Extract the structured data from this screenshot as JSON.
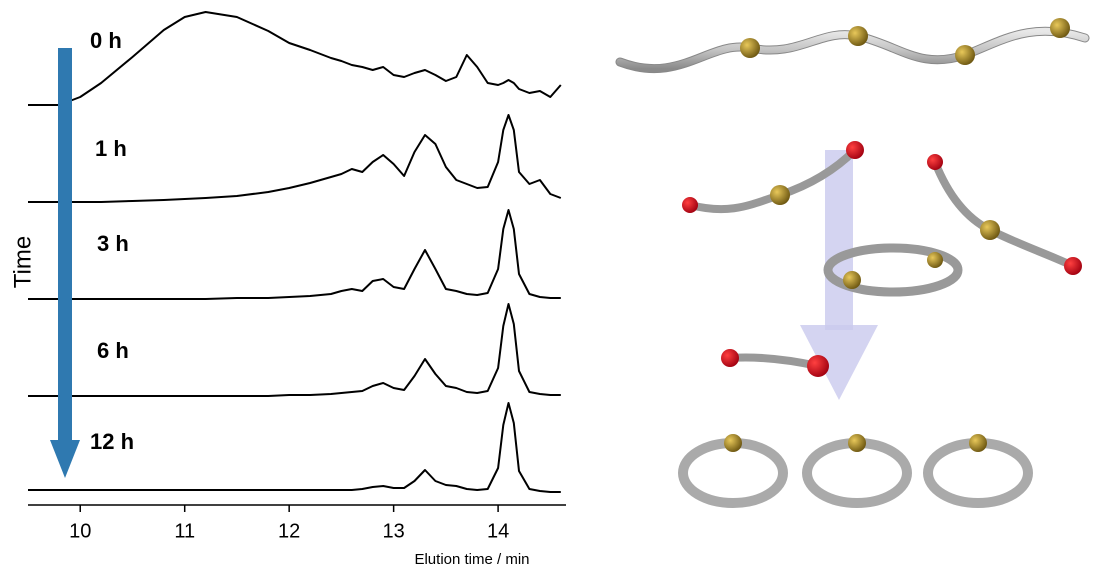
{
  "chart_data": {
    "type": "line",
    "xlabel": "Elution time / min",
    "ylabel": "Time",
    "xlim": [
      9.5,
      14.65
    ],
    "xticks": [
      10,
      11,
      12,
      13,
      14
    ],
    "x": [
      9.5,
      9.8,
      10.0,
      10.2,
      10.5,
      10.8,
      11.0,
      11.2,
      11.5,
      11.8,
      12.0,
      12.2,
      12.4,
      12.5,
      12.6,
      12.7,
      12.8,
      12.9,
      13.0,
      13.1,
      13.2,
      13.3,
      13.4,
      13.5,
      13.6,
      13.7,
      13.8,
      13.9,
      14.0,
      14.05,
      14.1,
      14.15,
      14.2,
      14.3,
      14.4,
      14.5,
      14.6
    ],
    "series": [
      {
        "name": "0 h",
        "color": "#000000",
        "values": [
          0,
          0,
          8,
          22,
          48,
          75,
          88,
          93,
          88,
          74,
          62,
          55,
          47,
          44,
          40,
          38,
          35,
          38,
          30,
          28,
          32,
          35,
          30,
          24,
          28,
          50,
          38,
          22,
          20,
          22,
          25,
          22,
          16,
          12,
          14,
          8,
          20
        ]
      },
      {
        "name": "1 h",
        "color": "#000000",
        "values": [
          0,
          0,
          0,
          0,
          1,
          2,
          3,
          4,
          6,
          10,
          14,
          19,
          25,
          28,
          33,
          30,
          40,
          47,
          38,
          26,
          50,
          67,
          58,
          35,
          22,
          18,
          14,
          15,
          40,
          72,
          87,
          72,
          30,
          18,
          22,
          8,
          4
        ]
      },
      {
        "name": "3 h",
        "color": "#000000",
        "values": [
          0,
          0,
          0,
          0,
          0,
          0,
          0,
          0,
          1,
          1,
          2,
          3,
          5,
          8,
          10,
          8,
          18,
          20,
          12,
          10,
          30,
          49,
          30,
          10,
          8,
          5,
          4,
          6,
          30,
          70,
          89,
          70,
          25,
          5,
          2,
          1,
          1
        ]
      },
      {
        "name": "6 h",
        "color": "#000000",
        "values": [
          0,
          0,
          0,
          0,
          0,
          0,
          0,
          0,
          0,
          0,
          1,
          1,
          2,
          3,
          4,
          5,
          10,
          13,
          8,
          6,
          20,
          37,
          22,
          10,
          8,
          4,
          3,
          5,
          28,
          70,
          92,
          72,
          25,
          4,
          2,
          1,
          1
        ]
      },
      {
        "name": "12 h",
        "color": "#000000",
        "values": [
          3,
          3,
          3,
          3,
          3,
          3,
          3,
          3,
          3,
          3,
          3,
          3,
          3,
          3,
          3,
          4,
          6,
          7,
          5,
          5,
          12,
          23,
          12,
          8,
          7,
          4,
          3,
          4,
          25,
          68,
          90,
          70,
          22,
          4,
          2,
          1,
          1
        ]
      }
    ]
  }
}
